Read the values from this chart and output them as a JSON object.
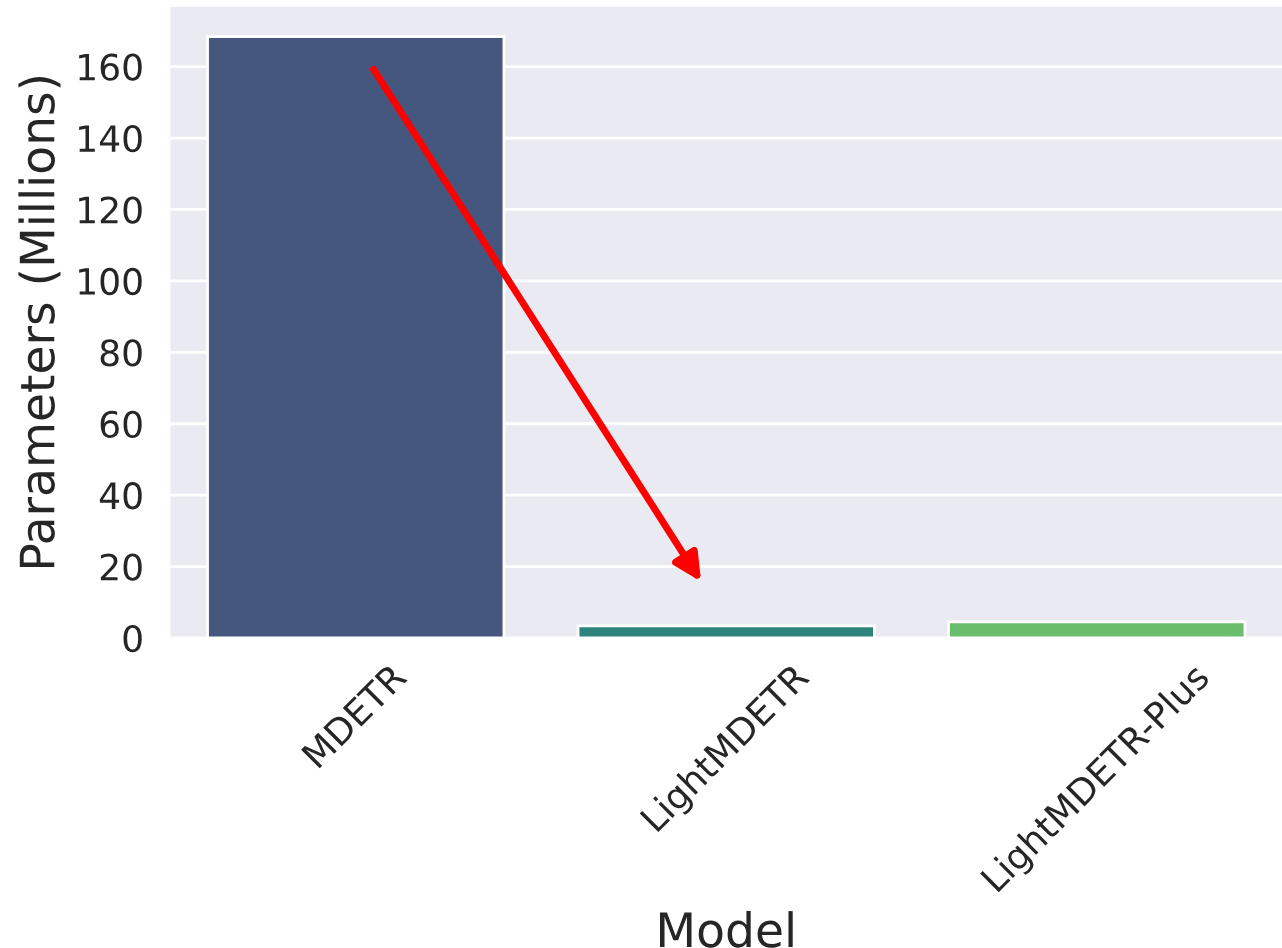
{
  "chart_data": {
    "type": "bar",
    "xlabel": "Model",
    "ylabel": "Parameters (Millions)",
    "categories": [
      "MDETR",
      "LightMDETR",
      "LightMDETR-Plus"
    ],
    "values": [
      168.4,
      3.4,
      4.5
    ],
    "colors": [
      "#45577e",
      "#2e837d",
      "#6abd6b"
    ],
    "ylim": [
      0,
      176.8
    ],
    "yticks": [
      0,
      20,
      40,
      60,
      80,
      100,
      120,
      140,
      160
    ],
    "grid": "y"
  }
}
